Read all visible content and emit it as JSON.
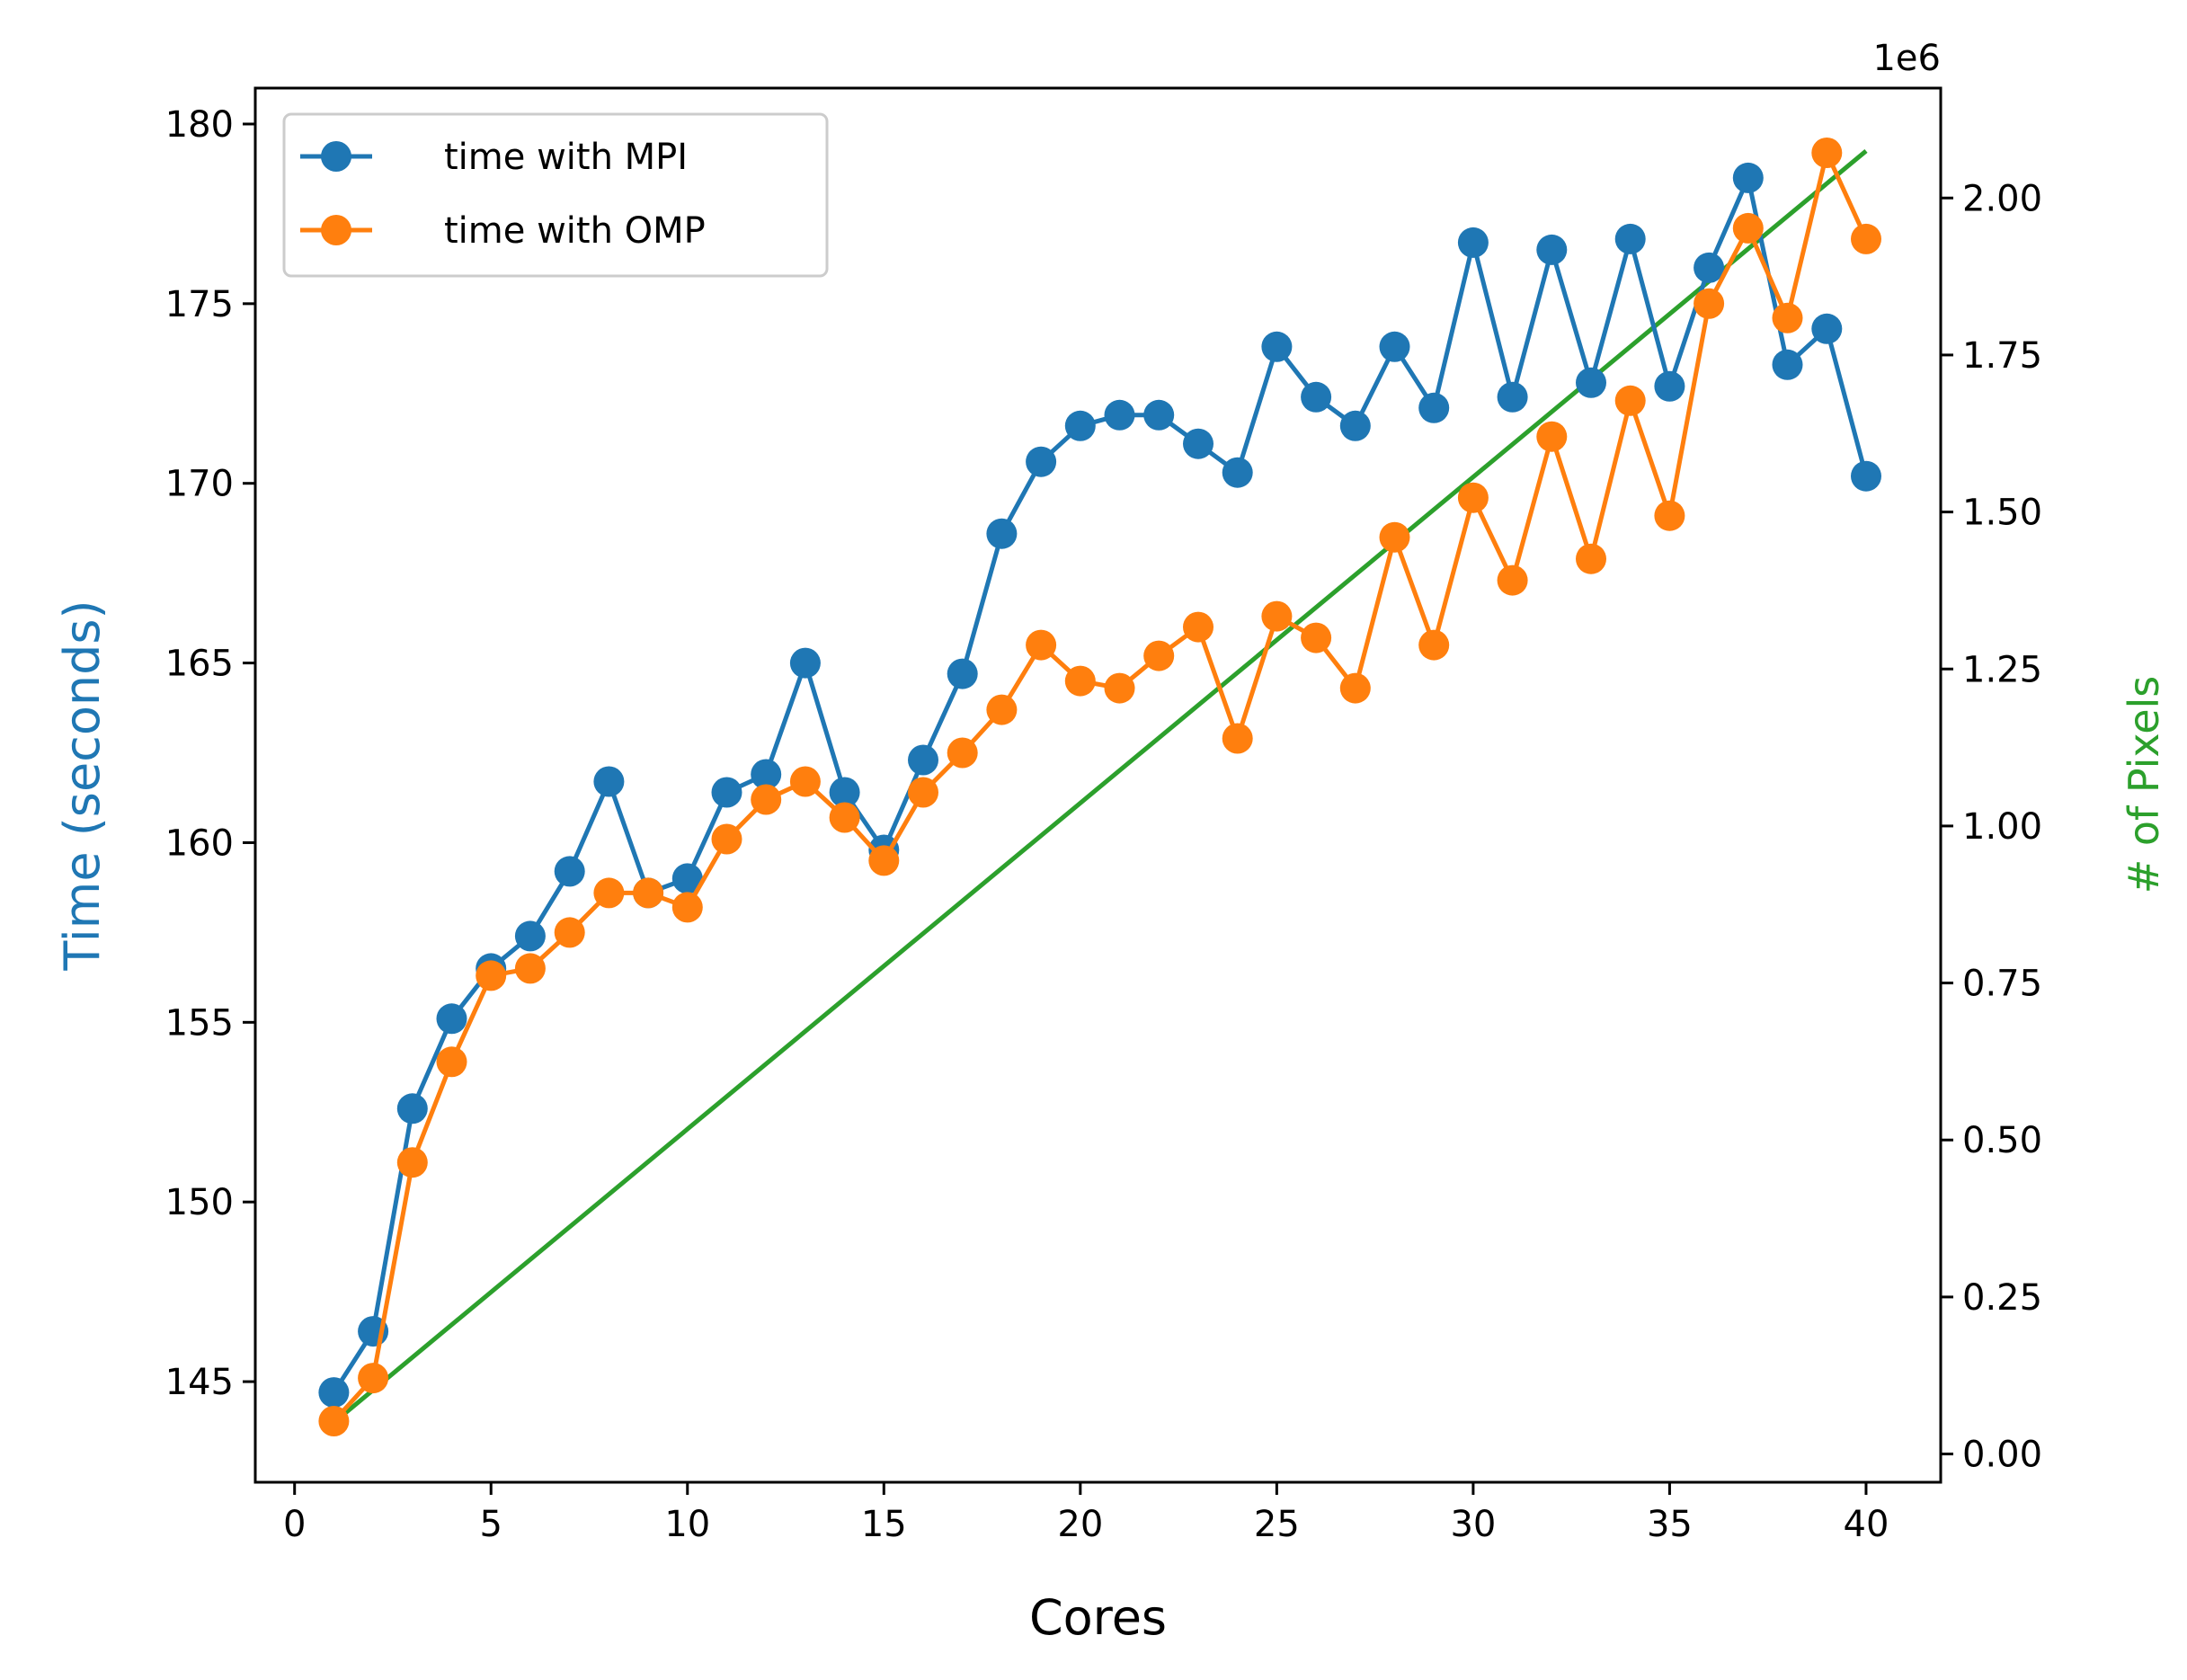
{
  "chart_data": {
    "type": "line",
    "xlabel": "Cores",
    "ylabel": "Time (seconds)",
    "y2label": "# of Pixels",
    "y2_offset_text": "1e6",
    "xlim": [
      -1,
      41.9
    ],
    "ylim": [
      142.2,
      181.0
    ],
    "y2lim": [
      -0.045,
      2.175
    ],
    "xticks": [
      0,
      5,
      10,
      15,
      20,
      25,
      30,
      35,
      40
    ],
    "yticks": [
      145,
      150,
      155,
      160,
      165,
      170,
      175,
      180
    ],
    "y2ticks": [
      0.0,
      0.25,
      0.5,
      0.75,
      1.0,
      1.25,
      1.5,
      1.75,
      2.0
    ],
    "y2tick_labels": [
      "0.00",
      "0.25",
      "0.50",
      "0.75",
      "1.00",
      "1.25",
      "1.50",
      "1.75",
      "2.00"
    ],
    "x": [
      1,
      2,
      3,
      4,
      5,
      6,
      7,
      8,
      9,
      10,
      11,
      12,
      13,
      14,
      15,
      16,
      17,
      18,
      19,
      20,
      21,
      22,
      23,
      24,
      25,
      26,
      27,
      28,
      29,
      30,
      31,
      32,
      33,
      34,
      35,
      36,
      37,
      38,
      39,
      40
    ],
    "series": [
      {
        "name": "time with MPI",
        "axis": "left",
        "color": "#1f77b4",
        "marker": "circle",
        "values": [
          144.7,
          146.4,
          152.6,
          155.1,
          156.5,
          157.4,
          159.2,
          161.7,
          158.6,
          159.0,
          161.4,
          161.9,
          165.0,
          161.4,
          159.8,
          162.3,
          164.7,
          168.6,
          170.6,
          171.6,
          171.9,
          171.9,
          171.1,
          170.3,
          173.8,
          172.4,
          171.6,
          173.8,
          172.1,
          176.7,
          172.4,
          176.5,
          172.8,
          176.8,
          172.7,
          176.0,
          178.5,
          173.3,
          174.3,
          170.2
        ]
      },
      {
        "name": "time with OMP",
        "axis": "left",
        "color": "#ff7f0e",
        "marker": "circle",
        "values": [
          143.9,
          145.1,
          151.1,
          153.9,
          156.3,
          156.5,
          157.5,
          158.6,
          158.6,
          158.2,
          160.1,
          161.2,
          161.7,
          160.7,
          159.5,
          161.4,
          162.5,
          163.7,
          165.5,
          164.5,
          164.3,
          165.2,
          166.0,
          162.9,
          166.3,
          165.7,
          164.3,
          168.5,
          165.5,
          169.6,
          167.3,
          171.3,
          167.9,
          172.3,
          169.1,
          175.0,
          177.1,
          174.6,
          179.2,
          176.8
        ]
      },
      {
        "name": "",
        "axis": "right",
        "color": "#2ca02c",
        "marker": "none",
        "x": [
          1,
          40
        ],
        "values": [
          0.05,
          2.075
        ]
      }
    ],
    "legend": "upper-left",
    "grid": false
  }
}
